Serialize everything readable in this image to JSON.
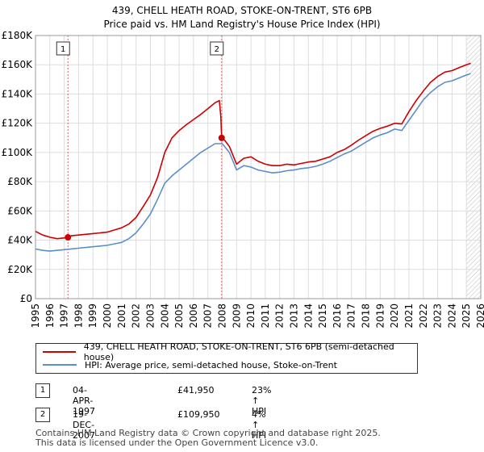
{
  "chart_data": {
    "type": "line",
    "title": "439, CHELL HEATH ROAD, STOKE-ON-TRENT, ST6 6PB",
    "subtitle": "Price paid vs. HM Land Registry's House Price Index (HPI)",
    "xlim": [
      1995,
      2026
    ],
    "ylim": [
      0,
      180000
    ],
    "y_ticks": [
      0,
      20000,
      40000,
      60000,
      80000,
      100000,
      120000,
      140000,
      160000,
      180000
    ],
    "y_tick_labels": [
      "£0",
      "£20K",
      "£40K",
      "£60K",
      "£80K",
      "£100K",
      "£120K",
      "£140K",
      "£160K",
      "£180K"
    ],
    "x_ticks": [
      1995,
      1996,
      1997,
      1998,
      1999,
      2000,
      2001,
      2002,
      2003,
      2004,
      2005,
      2006,
      2007,
      2008,
      2009,
      2010,
      2011,
      2012,
      2013,
      2014,
      2015,
      2016,
      2017,
      2018,
      2019,
      2020,
      2021,
      2022,
      2023,
      2024,
      2025,
      2026
    ],
    "x_tick_labels": [
      "1995",
      "1996",
      "1997",
      "1998",
      "1999",
      "2000",
      "2001",
      "2002",
      "2003",
      "2004",
      "2005",
      "2006",
      "2007",
      "2008",
      "2009",
      "2010",
      "2011",
      "2012",
      "2013",
      "2014",
      "2015",
      "2016",
      "2017",
      "2018",
      "2019",
      "2020",
      "2021",
      "2022",
      "2023",
      "2024",
      "2025",
      "2026"
    ],
    "grid": true,
    "future_hatch_from": 2025.0,
    "series": [
      {
        "name": "439, CHELL HEATH ROAD, STOKE-ON-TRENT, ST6 6PB (semi-detached house)",
        "color": "#cc0000",
        "x": [
          1995.0,
          1995.5,
          1996.0,
          1996.5,
          1997.0,
          1997.26,
          1997.5,
          1998.0,
          1998.5,
          1999.0,
          1999.5,
          2000.0,
          2000.5,
          2001.0,
          2001.5,
          2002.0,
          2002.5,
          2003.0,
          2003.5,
          2004.0,
          2004.5,
          2005.0,
          2005.5,
          2006.0,
          2006.5,
          2007.0,
          2007.5,
          2007.8,
          2007.9,
          2007.96,
          2008.2,
          2008.5,
          2009.0,
          2009.5,
          2010.0,
          2010.5,
          2011.0,
          2011.5,
          2012.0,
          2012.5,
          2013.0,
          2013.5,
          2014.0,
          2014.5,
          2015.0,
          2015.5,
          2016.0,
          2016.5,
          2017.0,
          2017.5,
          2018.0,
          2018.5,
          2019.0,
          2019.5,
          2020.0,
          2020.5,
          2021.0,
          2021.5,
          2022.0,
          2022.5,
          2023.0,
          2023.5,
          2024.0,
          2024.5,
          2025.0,
          2025.3
        ],
        "values": [
          46000,
          43500,
          42000,
          41000,
          41500,
          41950,
          43000,
          43500,
          44000,
          44500,
          45000,
          45500,
          47000,
          48500,
          51000,
          55500,
          63000,
          71000,
          83000,
          100000,
          110000,
          115000,
          119000,
          122500,
          126000,
          130000,
          134000,
          135500,
          125000,
          109950,
          108000,
          104000,
          92000,
          96000,
          97000,
          94000,
          92000,
          91000,
          91000,
          92000,
          91500,
          92500,
          93500,
          94000,
          95500,
          97000,
          100000,
          102000,
          105000,
          108500,
          111500,
          114500,
          116500,
          118000,
          120000,
          119500,
          128000,
          135500,
          142000,
          148000,
          152000,
          155000,
          156000,
          158000,
          160000,
          161000
        ]
      },
      {
        "name": "HPI: Average price, semi-detached house, Stoke-on-Trent",
        "color": "#5b8fc9",
        "x": [
          1995.0,
          1995.5,
          1996.0,
          1996.5,
          1997.0,
          1997.5,
          1998.0,
          1998.5,
          1999.0,
          1999.5,
          2000.0,
          2000.5,
          2001.0,
          2001.5,
          2002.0,
          2002.5,
          2003.0,
          2003.5,
          2004.0,
          2004.5,
          2005.0,
          2005.5,
          2006.0,
          2006.5,
          2007.0,
          2007.5,
          2008.0,
          2008.5,
          2009.0,
          2009.5,
          2010.0,
          2010.5,
          2011.0,
          2011.5,
          2012.0,
          2012.5,
          2013.0,
          2013.5,
          2014.0,
          2014.5,
          2015.0,
          2015.5,
          2016.0,
          2016.5,
          2017.0,
          2017.5,
          2018.0,
          2018.5,
          2019.0,
          2019.5,
          2020.0,
          2020.5,
          2021.0,
          2021.5,
          2022.0,
          2022.5,
          2023.0,
          2023.5,
          2024.0,
          2024.5,
          2025.0,
          2025.3
        ],
        "values": [
          34000,
          33000,
          32500,
          33000,
          33500,
          34000,
          34500,
          35000,
          35500,
          36000,
          36500,
          37500,
          38500,
          41000,
          45000,
          51000,
          58000,
          68000,
          79000,
          84000,
          88000,
          92000,
          96000,
          100000,
          103000,
          106000,
          106000,
          100000,
          88000,
          91000,
          90000,
          88000,
          87000,
          86000,
          86500,
          87500,
          88000,
          89000,
          89500,
          90500,
          92000,
          94000,
          96500,
          99000,
          101000,
          104000,
          107000,
          110000,
          112000,
          113500,
          116000,
          115000,
          122000,
          129000,
          136000,
          141000,
          145000,
          148000,
          149000,
          151000,
          153000,
          154000
        ]
      }
    ],
    "markers": [
      {
        "label": "1",
        "x": 1997.26,
        "value": 41950
      },
      {
        "label": "2",
        "x": 2007.96,
        "value": 109950
      }
    ]
  },
  "legend": {
    "items": [
      {
        "label": "439, CHELL HEATH ROAD, STOKE-ON-TRENT, ST6 6PB (semi-detached house)",
        "color": "#cc0000"
      },
      {
        "label": "HPI: Average price, semi-detached house, Stoke-on-Trent",
        "color": "#5b8fc9"
      }
    ]
  },
  "sales": [
    {
      "num": "1",
      "date": "04-APR-1997",
      "price": "£41,950",
      "hpi": "23% ↑ HPI"
    },
    {
      "num": "2",
      "date": "19-DEC-2007",
      "price": "£109,950",
      "hpi": "4% ↑ HPI"
    }
  ],
  "footer": {
    "line1": "Contains HM Land Registry data © Crown copyright and database right 2025.",
    "line2": "This data is licensed under the Open Government Licence v3.0."
  }
}
